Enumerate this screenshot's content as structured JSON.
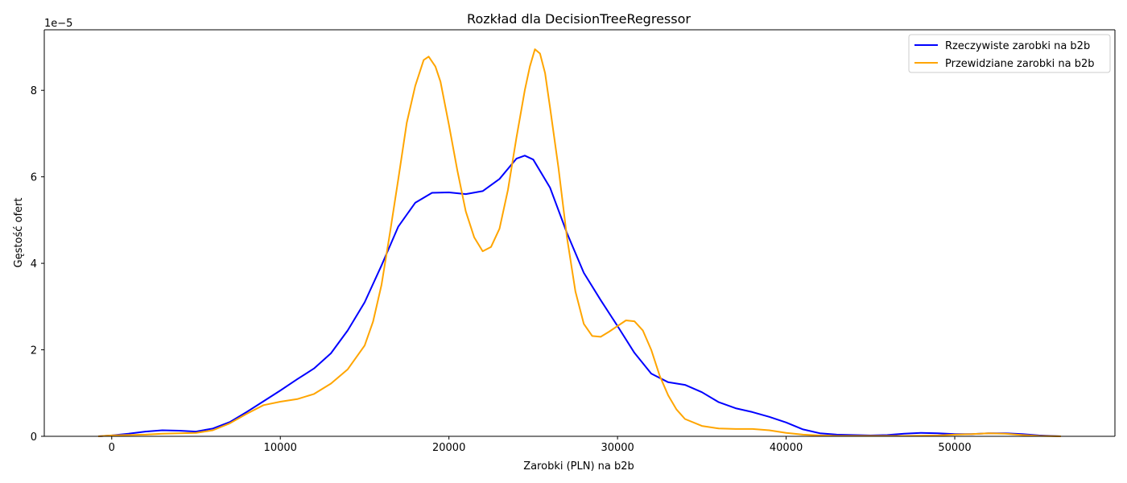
{
  "chart_data": {
    "type": "line",
    "title": "Rozkład dla DecisionTreeRegressor",
    "xlabel": "Zarobki (PLN) na b2b",
    "ylabel": "Gęstość ofert",
    "y_offset_text": "1e−5",
    "xlim": [
      -4000,
      59500
    ],
    "ylim": [
      0,
      9.4
    ],
    "x_ticks": [
      0,
      10000,
      20000,
      30000,
      40000,
      50000
    ],
    "x_tick_labels": [
      "0",
      "10000",
      "20000",
      "30000",
      "40000",
      "50000"
    ],
    "y_ticks": [
      0,
      2,
      4,
      6,
      8
    ],
    "y_tick_labels": [
      "0",
      "2",
      "4",
      "6",
      "8"
    ],
    "legend_position": "top-right",
    "grid": false,
    "series": [
      {
        "name": "Rzeczywiste zarobki na b2b",
        "color": "#0000ff",
        "points": [
          [
            -800,
            0.0
          ],
          [
            0,
            0.02
          ],
          [
            1000,
            0.06
          ],
          [
            2000,
            0.11
          ],
          [
            3000,
            0.14
          ],
          [
            4000,
            0.13
          ],
          [
            5000,
            0.11
          ],
          [
            6000,
            0.18
          ],
          [
            7000,
            0.33
          ],
          [
            8000,
            0.56
          ],
          [
            9000,
            0.81
          ],
          [
            10000,
            1.06
          ],
          [
            11000,
            1.32
          ],
          [
            12000,
            1.57
          ],
          [
            13000,
            1.92
          ],
          [
            14000,
            2.45
          ],
          [
            15000,
            3.1
          ],
          [
            16000,
            3.95
          ],
          [
            17000,
            4.85
          ],
          [
            18000,
            5.4
          ],
          [
            19000,
            5.63
          ],
          [
            20000,
            5.64
          ],
          [
            21000,
            5.6
          ],
          [
            22000,
            5.67
          ],
          [
            23000,
            5.95
          ],
          [
            24000,
            6.42
          ],
          [
            24500,
            6.49
          ],
          [
            25000,
            6.4
          ],
          [
            26000,
            5.75
          ],
          [
            27000,
            4.7
          ],
          [
            28000,
            3.78
          ],
          [
            29000,
            3.15
          ],
          [
            30000,
            2.55
          ],
          [
            31000,
            1.93
          ],
          [
            32000,
            1.45
          ],
          [
            33000,
            1.25
          ],
          [
            34000,
            1.19
          ],
          [
            35000,
            1.02
          ],
          [
            36000,
            0.79
          ],
          [
            37000,
            0.65
          ],
          [
            38000,
            0.56
          ],
          [
            39000,
            0.45
          ],
          [
            40000,
            0.32
          ],
          [
            41000,
            0.16
          ],
          [
            42000,
            0.07
          ],
          [
            43000,
            0.04
          ],
          [
            44000,
            0.03
          ],
          [
            45000,
            0.02
          ],
          [
            46000,
            0.03
          ],
          [
            47000,
            0.06
          ],
          [
            48000,
            0.08
          ],
          [
            49000,
            0.07
          ],
          [
            50000,
            0.05
          ],
          [
            51000,
            0.05
          ],
          [
            52000,
            0.07
          ],
          [
            53000,
            0.07
          ],
          [
            54000,
            0.05
          ],
          [
            55000,
            0.02
          ],
          [
            56300,
            0.0
          ]
        ]
      },
      {
        "name": "Przewidziane zarobki na b2b",
        "color": "#ffa500",
        "points": [
          [
            -800,
            0.0
          ],
          [
            0,
            0.02
          ],
          [
            1000,
            0.03
          ],
          [
            2000,
            0.04
          ],
          [
            3000,
            0.06
          ],
          [
            4000,
            0.07
          ],
          [
            5000,
            0.08
          ],
          [
            6000,
            0.14
          ],
          [
            7000,
            0.3
          ],
          [
            8000,
            0.52
          ],
          [
            9000,
            0.72
          ],
          [
            10000,
            0.8
          ],
          [
            11000,
            0.86
          ],
          [
            12000,
            0.98
          ],
          [
            13000,
            1.22
          ],
          [
            14000,
            1.55
          ],
          [
            15000,
            2.1
          ],
          [
            15500,
            2.65
          ],
          [
            16000,
            3.5
          ],
          [
            16500,
            4.7
          ],
          [
            17000,
            5.95
          ],
          [
            17500,
            7.25
          ],
          [
            18000,
            8.1
          ],
          [
            18500,
            8.7
          ],
          [
            18800,
            8.78
          ],
          [
            19200,
            8.55
          ],
          [
            19500,
            8.2
          ],
          [
            20000,
            7.2
          ],
          [
            20500,
            6.15
          ],
          [
            21000,
            5.2
          ],
          [
            21500,
            4.6
          ],
          [
            22000,
            4.28
          ],
          [
            22500,
            4.38
          ],
          [
            23000,
            4.8
          ],
          [
            23500,
            5.7
          ],
          [
            24000,
            6.9
          ],
          [
            24500,
            8.0
          ],
          [
            24800,
            8.55
          ],
          [
            25100,
            8.95
          ],
          [
            25400,
            8.85
          ],
          [
            25700,
            8.4
          ],
          [
            26000,
            7.6
          ],
          [
            26500,
            6.2
          ],
          [
            27000,
            4.6
          ],
          [
            27500,
            3.35
          ],
          [
            28000,
            2.6
          ],
          [
            28500,
            2.32
          ],
          [
            29000,
            2.3
          ],
          [
            29500,
            2.42
          ],
          [
            30000,
            2.55
          ],
          [
            30500,
            2.68
          ],
          [
            31000,
            2.66
          ],
          [
            31500,
            2.45
          ],
          [
            32000,
            2.0
          ],
          [
            32500,
            1.4
          ],
          [
            33000,
            0.95
          ],
          [
            33500,
            0.62
          ],
          [
            34000,
            0.4
          ],
          [
            35000,
            0.24
          ],
          [
            36000,
            0.18
          ],
          [
            37000,
            0.17
          ],
          [
            38000,
            0.17
          ],
          [
            39000,
            0.14
          ],
          [
            40000,
            0.08
          ],
          [
            41000,
            0.04
          ],
          [
            42000,
            0.02
          ],
          [
            43000,
            0.01
          ],
          [
            45000,
            0.01
          ],
          [
            47000,
            0.01
          ],
          [
            49000,
            0.02
          ],
          [
            50000,
            0.04
          ],
          [
            51000,
            0.05
          ],
          [
            52000,
            0.07
          ],
          [
            53000,
            0.06
          ],
          [
            54000,
            0.03
          ],
          [
            55000,
            0.01
          ],
          [
            56300,
            0.0
          ]
        ]
      }
    ]
  }
}
